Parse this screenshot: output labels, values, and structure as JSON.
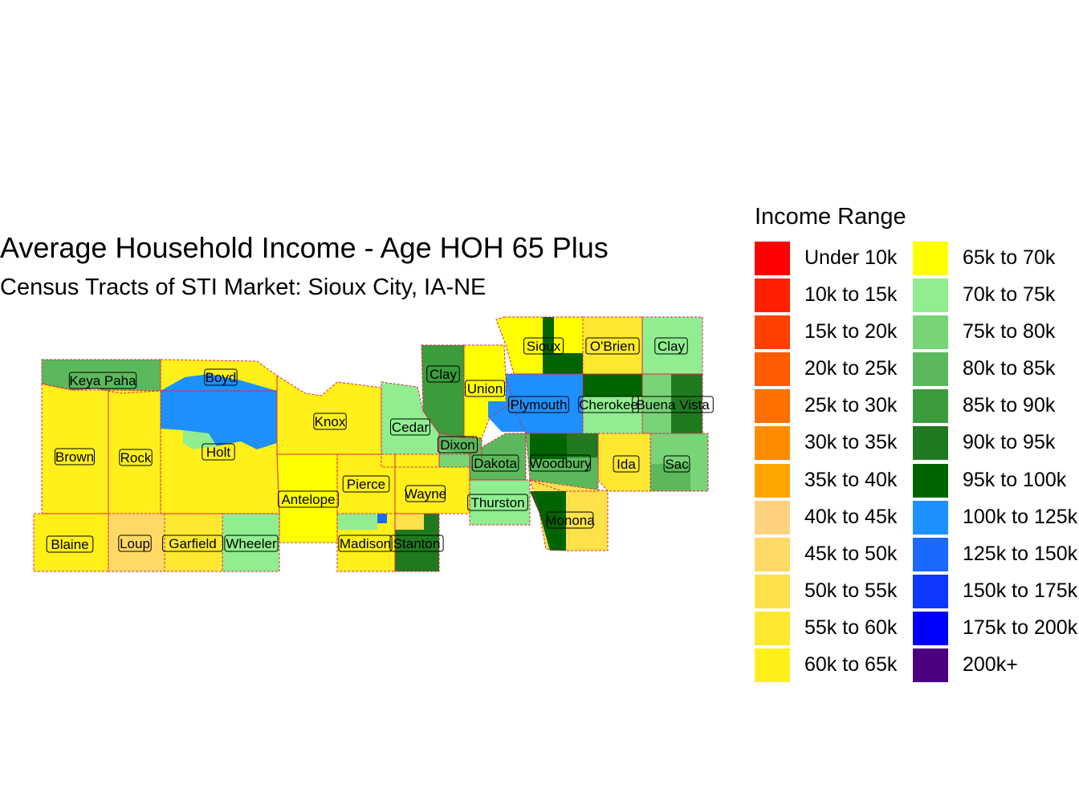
{
  "title": "Average Household Income - Age HOH 65 Plus",
  "subtitle": "Census Tracts of STI Market: Sioux City, IA-NE",
  "legend": {
    "title": "Income Range",
    "items": [
      {
        "label": "Under 10k",
        "color": "#ff0000"
      },
      {
        "label": "10k to 15k",
        "color": "#ff2000"
      },
      {
        "label": "15k to 20k",
        "color": "#ff4000"
      },
      {
        "label": "20k to 25k",
        "color": "#ff5a00"
      },
      {
        "label": "25k to 30k",
        "color": "#ff7000"
      },
      {
        "label": "30k to 35k",
        "color": "#ff8c00"
      },
      {
        "label": "35k to 40k",
        "color": "#ffa500"
      },
      {
        "label": "40k to 45k",
        "color": "#ffd27f"
      },
      {
        "label": "45k to 50k",
        "color": "#ffd966"
      },
      {
        "label": "50k to 55k",
        "color": "#ffe14a"
      },
      {
        "label": "55k to 60k",
        "color": "#ffe830"
      },
      {
        "label": "60k to 65k",
        "color": "#fff01a"
      },
      {
        "label": "65k to 70k",
        "color": "#ffff00"
      },
      {
        "label": "70k to 75k",
        "color": "#90ee90"
      },
      {
        "label": "75k to 80k",
        "color": "#77d477"
      },
      {
        "label": "80k to 85k",
        "color": "#5cb85c"
      },
      {
        "label": "85k to 90k",
        "color": "#3c9c3c"
      },
      {
        "label": "90k to 95k",
        "color": "#1f7a1f"
      },
      {
        "label": "95k to 100k",
        "color": "#006400"
      },
      {
        "label": "100k to 125k",
        "color": "#1e90ff"
      },
      {
        "label": "125k to 150k",
        "color": "#1a6aff"
      },
      {
        "label": "150k to 175k",
        "color": "#0f38ff"
      },
      {
        "label": "175k to 200k",
        "color": "#0000ff"
      },
      {
        "label": "200k+",
        "color": "#4b0082"
      }
    ]
  },
  "counties": [
    {
      "name": "Keya Paha",
      "color": "#5cb85c"
    },
    {
      "name": "Boyd",
      "color": "#fff01a"
    },
    {
      "name": "Brown",
      "color": "#fff01a"
    },
    {
      "name": "Rock",
      "color": "#fff01a"
    },
    {
      "name": "Holt",
      "color": "#fff01a"
    },
    {
      "name": "Knox",
      "color": "#fff01a"
    },
    {
      "name": "Cedar",
      "color": "#90ee90"
    },
    {
      "name": "Clay",
      "color": "#3c9c3c"
    },
    {
      "name": "Union",
      "color": "#ffff00"
    },
    {
      "name": "Sioux",
      "color": "#ffff00"
    },
    {
      "name": "O'Brien",
      "color": "#ffe830"
    },
    {
      "name": "Clay",
      "color": "#90ee90"
    },
    {
      "name": "Plymouth",
      "color": "#1e90ff"
    },
    {
      "name": "Cherokee",
      "color": "#90ee90"
    },
    {
      "name": "Buena Vista",
      "color": "#77d477"
    },
    {
      "name": "Dixon",
      "color": "#5cb85c"
    },
    {
      "name": "Dakota",
      "color": "#5cb85c"
    },
    {
      "name": "Woodbury",
      "color": "#5cb85c"
    },
    {
      "name": "Ida",
      "color": "#ffe830"
    },
    {
      "name": "Sac",
      "color": "#77d477"
    },
    {
      "name": "Antelope",
      "color": "#ffff00"
    },
    {
      "name": "Pierce",
      "color": "#fff01a"
    },
    {
      "name": "Wayne",
      "color": "#fff01a"
    },
    {
      "name": "Thurston",
      "color": "#90ee90"
    },
    {
      "name": "Monona",
      "color": "#ffe14a"
    },
    {
      "name": "Blaine",
      "color": "#fff01a"
    },
    {
      "name": "Loup",
      "color": "#ffd966"
    },
    {
      "name": "Garfield",
      "color": "#ffe830"
    },
    {
      "name": "Wheeler",
      "color": "#90ee90"
    },
    {
      "name": "Madison",
      "color": "#fff01a"
    },
    {
      "name": "Stanton",
      "color": "#1f7a1f"
    }
  ]
}
